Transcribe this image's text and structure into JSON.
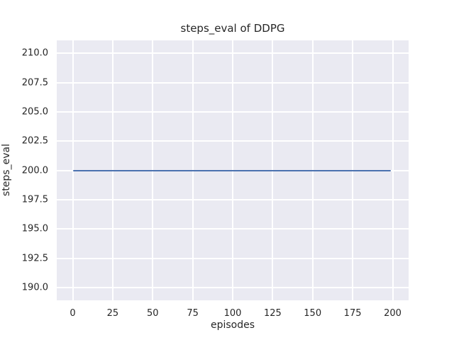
{
  "chart_data": {
    "type": "line",
    "title": "steps_eval of DDPG",
    "xlabel": "episodes",
    "ylabel": "steps_eval",
    "xlim": [
      -10,
      210
    ],
    "ylim": [
      188.9,
      211.1
    ],
    "xticks": [
      0,
      25,
      50,
      75,
      100,
      125,
      150,
      175,
      200
    ],
    "xtick_labels": [
      "0",
      "25",
      "50",
      "75",
      "100",
      "125",
      "150",
      "175",
      "200"
    ],
    "yticks": [
      190.0,
      192.5,
      195.0,
      197.5,
      200.0,
      202.5,
      205.0,
      207.5,
      210.0
    ],
    "ytick_labels": [
      "190.0",
      "192.5",
      "195.0",
      "197.5",
      "200.0",
      "202.5",
      "205.0",
      "207.5",
      "210.0"
    ],
    "grid": true,
    "legend": false,
    "series": [
      {
        "name": "steps_eval",
        "color": "#4C72B0",
        "x": [
          0,
          199
        ],
        "y": [
          200,
          200
        ],
        "description": "constant line at steps_eval = 200 across all episodes"
      }
    ],
    "styles": {
      "figure_background": "#FFFFFF",
      "axes_background": "#EAEAF2",
      "grid_color": "#FFFFFF",
      "text_color": "#262626"
    }
  }
}
